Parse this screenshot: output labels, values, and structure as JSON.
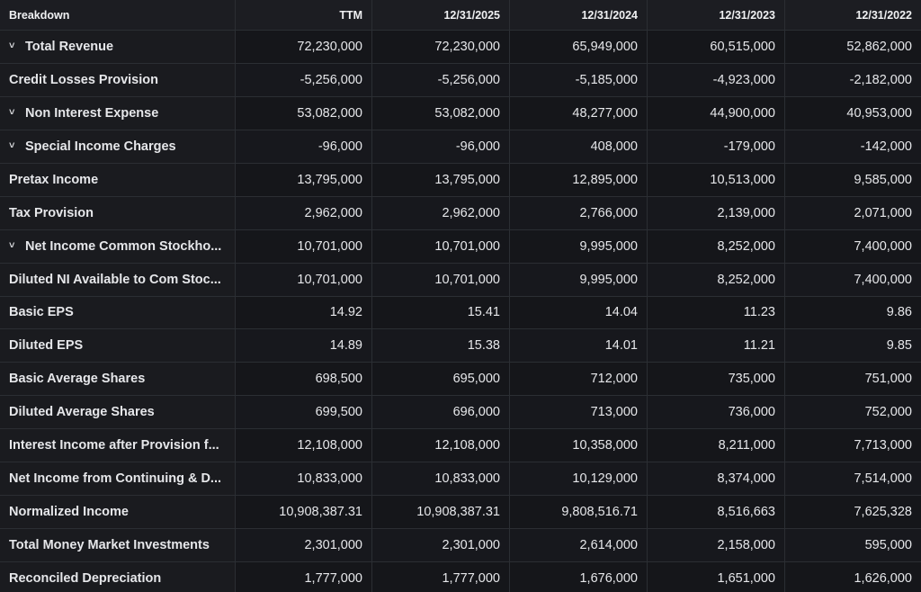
{
  "header": {
    "breakdown": "Breakdown",
    "cols": [
      "TTM",
      "12/31/2025",
      "12/31/2024",
      "12/31/2023",
      "12/31/2022"
    ]
  },
  "rows": [
    {
      "label": "Total Revenue",
      "expandable": true,
      "values": [
        "72,230,000",
        "72,230,000",
        "65,949,000",
        "60,515,000",
        "52,862,000"
      ]
    },
    {
      "label": "Credit Losses Provision",
      "expandable": false,
      "values": [
        "-5,256,000",
        "-5,256,000",
        "-5,185,000",
        "-4,923,000",
        "-2,182,000"
      ]
    },
    {
      "label": "Non Interest Expense",
      "expandable": true,
      "values": [
        "53,082,000",
        "53,082,000",
        "48,277,000",
        "44,900,000",
        "40,953,000"
      ]
    },
    {
      "label": "Special Income Charges",
      "expandable": true,
      "values": [
        "-96,000",
        "-96,000",
        "408,000",
        "-179,000",
        "-142,000"
      ]
    },
    {
      "label": "Pretax Income",
      "expandable": false,
      "values": [
        "13,795,000",
        "13,795,000",
        "12,895,000",
        "10,513,000",
        "9,585,000"
      ]
    },
    {
      "label": "Tax Provision",
      "expandable": false,
      "values": [
        "2,962,000",
        "2,962,000",
        "2,766,000",
        "2,139,000",
        "2,071,000"
      ]
    },
    {
      "label": "Net Income Common Stockho...",
      "expandable": true,
      "values": [
        "10,701,000",
        "10,701,000",
        "9,995,000",
        "8,252,000",
        "7,400,000"
      ]
    },
    {
      "label": "Diluted NI Available to Com Stoc...",
      "expandable": false,
      "values": [
        "10,701,000",
        "10,701,000",
        "9,995,000",
        "8,252,000",
        "7,400,000"
      ]
    },
    {
      "label": "Basic EPS",
      "expandable": false,
      "values": [
        "14.92",
        "15.41",
        "14.04",
        "11.23",
        "9.86"
      ]
    },
    {
      "label": "Diluted EPS",
      "expandable": false,
      "values": [
        "14.89",
        "15.38",
        "14.01",
        "11.21",
        "9.85"
      ]
    },
    {
      "label": "Basic Average Shares",
      "expandable": false,
      "values": [
        "698,500",
        "695,000",
        "712,000",
        "735,000",
        "751,000"
      ]
    },
    {
      "label": "Diluted Average Shares",
      "expandable": false,
      "values": [
        "699,500",
        "696,000",
        "713,000",
        "736,000",
        "752,000"
      ]
    },
    {
      "label": "Interest Income after Provision f...",
      "expandable": false,
      "values": [
        "12,108,000",
        "12,108,000",
        "10,358,000",
        "8,211,000",
        "7,713,000"
      ]
    },
    {
      "label": "Net Income from Continuing & D...",
      "expandable": false,
      "values": [
        "10,833,000",
        "10,833,000",
        "10,129,000",
        "8,374,000",
        "7,514,000"
      ]
    },
    {
      "label": "Normalized Income",
      "expandable": false,
      "values": [
        "10,908,387.31",
        "10,908,387.31",
        "9,808,516.71",
        "8,516,663",
        "7,625,328"
      ]
    },
    {
      "label": "Total Money Market Investments",
      "expandable": false,
      "values": [
        "2,301,000",
        "2,301,000",
        "2,614,000",
        "2,158,000",
        "595,000"
      ]
    },
    {
      "label": "Reconciled Depreciation",
      "expandable": false,
      "values": [
        "1,777,000",
        "1,777,000",
        "1,676,000",
        "1,651,000",
        "1,626,000"
      ]
    }
  ],
  "icons": {
    "expand": "chevron-down-icon"
  },
  "colors": {
    "background": "#0f1013",
    "text": "#e9eaec",
    "border": "#2b2e33"
  }
}
